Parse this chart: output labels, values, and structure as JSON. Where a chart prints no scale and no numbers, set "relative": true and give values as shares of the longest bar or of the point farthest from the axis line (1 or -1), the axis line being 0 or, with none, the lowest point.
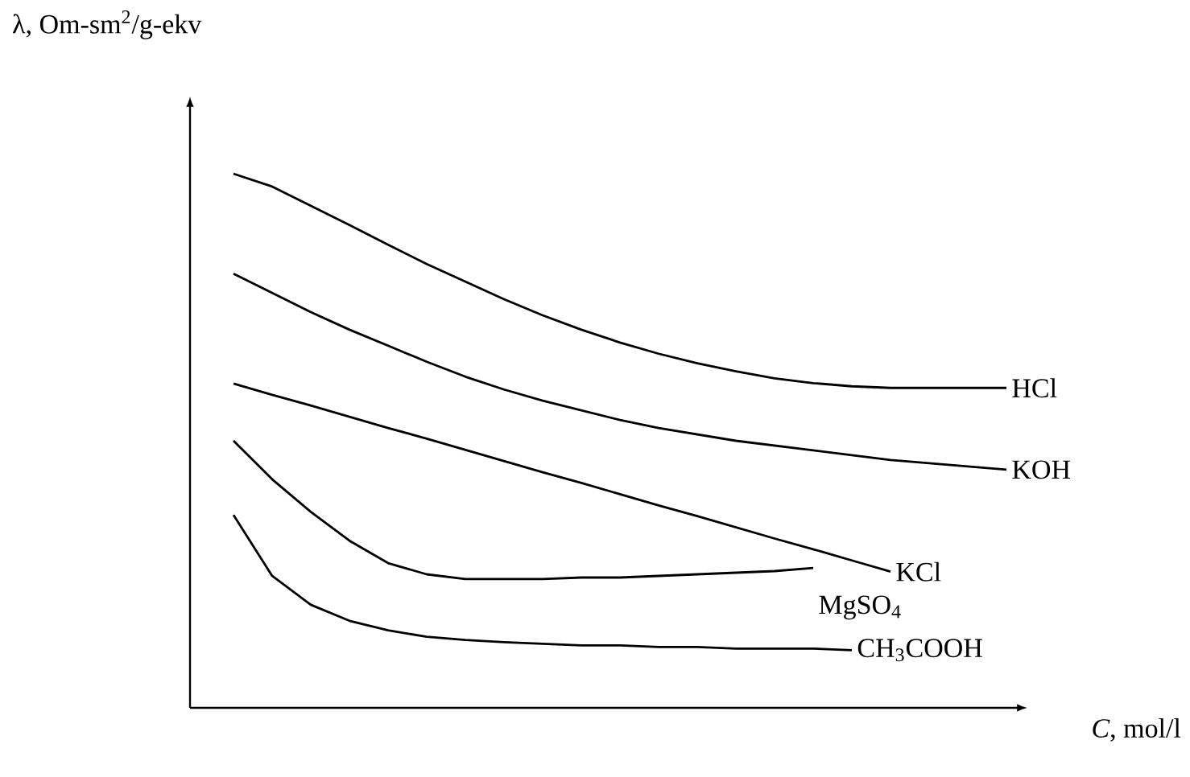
{
  "chart_data": {
    "type": "line",
    "relative": true,
    "xlabel": "*C*, mol/l",
    "ylabel": "λ, Om-sm$^{2}$/g-ekv",
    "legend": false,
    "marker": "none",
    "line_style": "solid",
    "categories": [
      null,
      null,
      null,
      null,
      null,
      null,
      null,
      null,
      null,
      null,
      null,
      null,
      null,
      null,
      null,
      null,
      null,
      null,
      null,
      null,
      null
    ],
    "series": [
      {
        "name": "HCl",
        "color": "#000000",
        "values": [
          1.0,
          0.976,
          0.94,
          0.904,
          0.867,
          0.831,
          0.798,
          0.765,
          0.735,
          0.708,
          0.684,
          0.663,
          0.645,
          0.63,
          0.617,
          0.608,
          0.602,
          0.599,
          0.599,
          0.599,
          0.599
        ]
      },
      {
        "name": "KOH",
        "color": "#000000",
        "values": [
          0.813,
          0.777,
          0.741,
          0.708,
          0.678,
          0.648,
          0.62,
          0.596,
          0.575,
          0.557,
          0.539,
          0.524,
          0.512,
          0.5,
          0.491,
          0.482,
          0.473,
          0.464,
          0.458,
          0.452,
          0.446
        ]
      },
      {
        "name": "KCl",
        "color": "#000000",
        "values": [
          0.607,
          0.586,
          0.566,
          0.545,
          0.524,
          0.504,
          0.483,
          0.462,
          0.441,
          0.421,
          0.4,
          0.379,
          0.359,
          0.338,
          0.317,
          0.297,
          0.276,
          0.255,
          null,
          null,
          null
        ]
      },
      {
        "name": "MgSO$_{4}$",
        "color": "#000000",
        "values": [
          0.5,
          0.428,
          0.367,
          0.313,
          0.271,
          0.25,
          0.241,
          0.241,
          0.241,
          0.244,
          0.244,
          0.247,
          0.25,
          0.253,
          0.256,
          0.262,
          null,
          null,
          null,
          null,
          null
        ]
      },
      {
        "name": "CH$_{3}$COOH",
        "color": "#000000",
        "values": [
          0.361,
          0.247,
          0.193,
          0.163,
          0.145,
          0.133,
          0.127,
          0.123,
          0.12,
          0.117,
          0.117,
          0.114,
          0.114,
          0.111,
          0.111,
          0.111,
          0.108,
          null,
          null,
          null,
          null
        ]
      }
    ]
  }
}
